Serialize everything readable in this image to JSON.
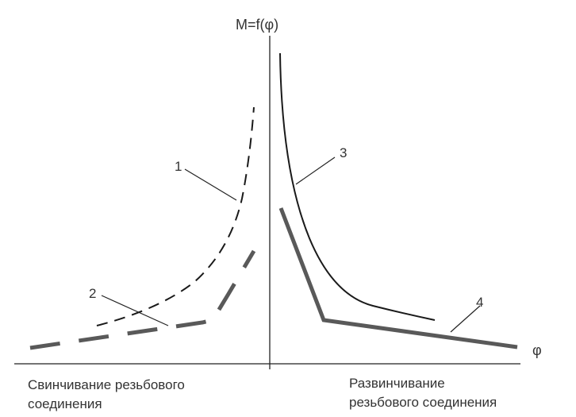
{
  "axis": {
    "y_label": "M=f(φ)",
    "x_label": "φ"
  },
  "curves": [
    {
      "label": "1",
      "style": "thin dashed"
    },
    {
      "label": "2",
      "style": "thick dashed"
    },
    {
      "label": "3",
      "style": "thin solid"
    },
    {
      "label": "4",
      "style": "thick solid"
    }
  ],
  "captions": {
    "left": [
      "Свинчивание резьбового",
      "соединения"
    ],
    "right": [
      "Развинчивание",
      "резьбового соединения"
    ]
  },
  "colors": {
    "thin_line": "#1a1a1a",
    "thick_line": "#595959",
    "text": "#333333"
  }
}
